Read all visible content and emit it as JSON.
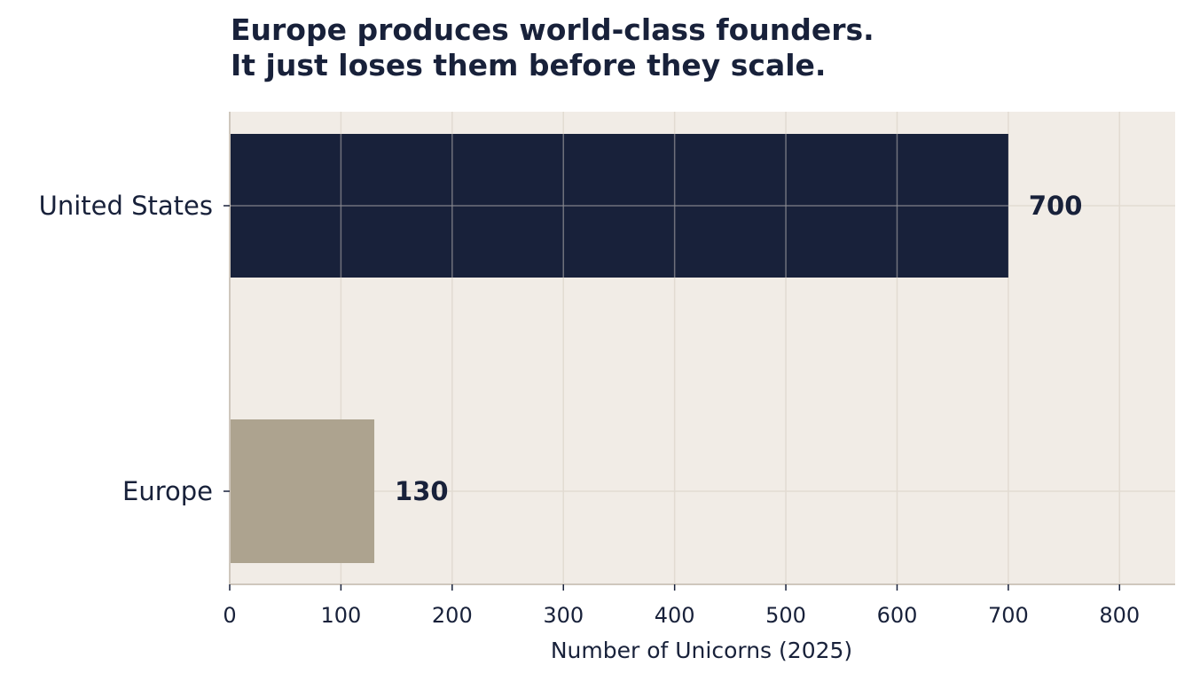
{
  "chart_data": {
    "type": "bar",
    "orientation": "horizontal",
    "title_lines": [
      "Europe produces world-class founders.",
      "It just loses them before they scale."
    ],
    "categories": [
      "United States",
      "Europe"
    ],
    "values": [
      700,
      130
    ],
    "value_labels": [
      "700",
      "130"
    ],
    "bar_colors": [
      "#18213a",
      "#ada38f"
    ],
    "xlabel": "Number of Unicorns (2025)",
    "ylabel": "",
    "xlim": [
      0,
      850
    ],
    "x_ticks": [
      0,
      100,
      200,
      300,
      400,
      500,
      600,
      700,
      800
    ],
    "x_tick_labels": [
      "0",
      "100",
      "200",
      "300",
      "400",
      "500",
      "600",
      "700",
      "800"
    ],
    "grid": true,
    "legend": "none",
    "colors": {
      "plot_background": "#f1ece6",
      "text": "#18213a",
      "grid_under": "#e2dbd2",
      "grid_over": "#8c8c92",
      "spine": "#cfc7bd"
    }
  }
}
